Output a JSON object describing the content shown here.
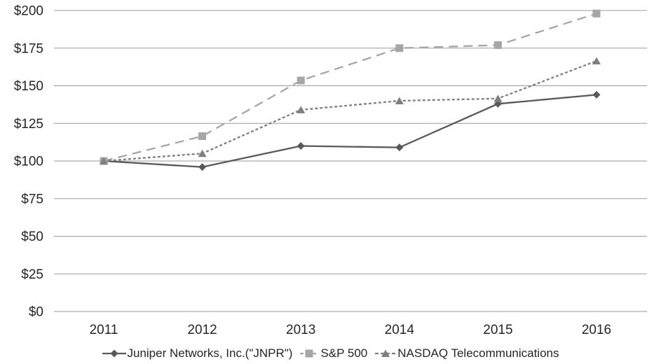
{
  "chart_data": {
    "type": "line",
    "title": "",
    "categories": [
      "2011",
      "2012",
      "2013",
      "2014",
      "2015",
      "2016"
    ],
    "series": [
      {
        "name": "Juniper Networks, Inc.(\"JNPR\")",
        "values": [
          100,
          96,
          110,
          109,
          138,
          144
        ],
        "color": "#595959",
        "marker": "diamond",
        "line_style": "solid"
      },
      {
        "name": "S&P 500",
        "values": [
          100,
          116.5,
          153.5,
          175,
          177,
          198
        ],
        "color": "#a6a6a6",
        "marker": "square",
        "line_style": "long-dash"
      },
      {
        "name": "NASDAQ Telecommunications",
        "values": [
          100,
          105,
          134,
          140,
          141.5,
          166.5
        ],
        "color": "#7f7f7f",
        "marker": "triangle",
        "line_style": "short-dash"
      }
    ],
    "xlabel": "",
    "ylabel": "",
    "ylim": [
      0,
      200
    ],
    "ytick_step": 25,
    "ytick_values": [
      0,
      25,
      50,
      75,
      100,
      125,
      150,
      175,
      200
    ],
    "ytick_labels": [
      "$0",
      "$25",
      "$50",
      "$75",
      "$100",
      "$125",
      "$150",
      "$175",
      "$200"
    ],
    "grid": true,
    "legend_position": "bottom",
    "gridline_color": "#9a9a9a",
    "text_color": "#262626",
    "background_color": "#ffffff"
  }
}
